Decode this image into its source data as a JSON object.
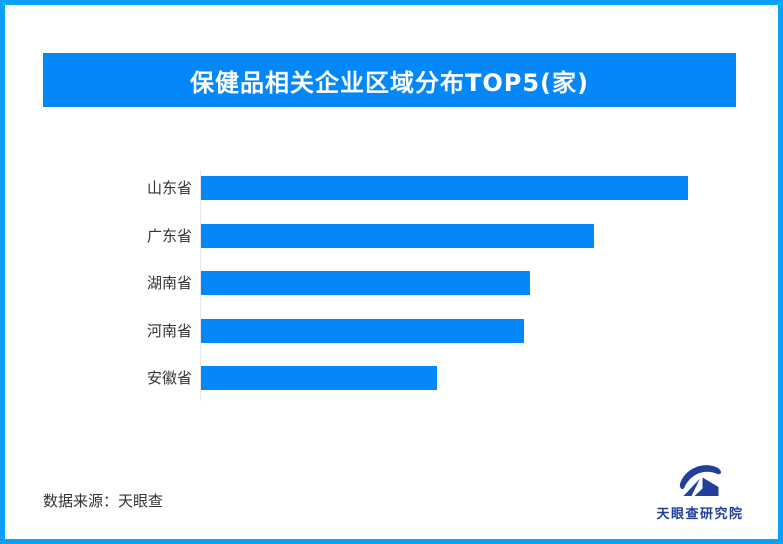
{
  "page": {
    "border_color": "#0A9FF8",
    "background_color": "#FFFFFF"
  },
  "header": {
    "title": "保健品相关企业区域分布TOP5(家)",
    "banner_color": "#0487F8",
    "title_color": "#FFFFFF"
  },
  "chart_data": {
    "type": "bar",
    "orientation": "horizontal",
    "title": "保健品相关企业区域分布TOP5(家)",
    "categories": [
      "山东省",
      "广东省",
      "湖南省",
      "河南省",
      "安徽省"
    ],
    "values_relative_pct": [
      100,
      80.7,
      67.6,
      66.3,
      48.5
    ],
    "value_labels_shown": false,
    "xlabel": "",
    "ylabel": "",
    "grid": false,
    "legend": "none",
    "bar_color": "#0487F8",
    "axis_line_color": "#E7E7E7",
    "category_label_color": "#333333"
  },
  "footer": {
    "source_text": "数据来源：天眼查",
    "logo_text": "天眼查研究院",
    "logo_color": "#21409A"
  }
}
